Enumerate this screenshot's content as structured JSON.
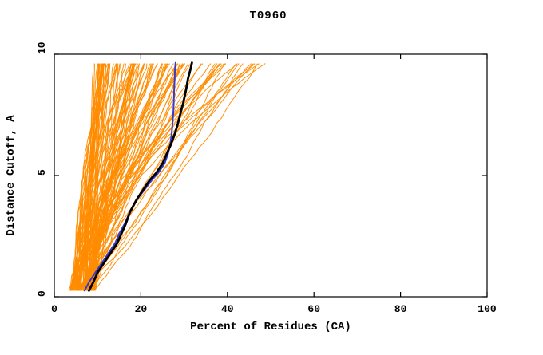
{
  "chart_data": {
    "type": "line",
    "title": "T0960",
    "xlabel": "Percent of Residues (CA)",
    "ylabel": "Distance Cutoff, A",
    "xlim": [
      0,
      100
    ],
    "ylim": [
      0,
      10
    ],
    "xticks": [
      0,
      20,
      40,
      60,
      80,
      100
    ],
    "yticks": [
      0,
      5,
      10
    ],
    "grid": false,
    "legend": "none",
    "colors": {
      "background": "#FFFFFF",
      "frame": "#000000",
      "models": "#FF8C00",
      "best_model": "#000000",
      "highlight_model": "#3A3AC8"
    },
    "series": [
      {
        "name": "highlight_model",
        "color": "#3A3AC8",
        "width": 2,
        "points": [
          [
            7,
            0.25
          ],
          [
            8,
            0.6
          ],
          [
            9.5,
            1.0
          ],
          [
            11,
            1.4
          ],
          [
            12.5,
            1.8
          ],
          [
            14,
            2.2
          ],
          [
            15,
            2.6
          ],
          [
            16.2,
            3.0
          ],
          [
            17.5,
            3.5
          ],
          [
            19,
            4.0
          ],
          [
            20.8,
            4.4
          ],
          [
            22.5,
            4.8
          ],
          [
            24,
            5.1
          ],
          [
            25.5,
            5.5
          ],
          [
            26.3,
            5.9
          ],
          [
            26.8,
            6.3
          ],
          [
            27.1,
            6.7
          ],
          [
            27.3,
            7.1
          ],
          [
            27.5,
            7.6
          ],
          [
            27.6,
            8.0
          ],
          [
            27.7,
            8.5
          ],
          [
            27.8,
            9.0
          ],
          [
            27.9,
            9.4
          ],
          [
            28,
            9.65
          ]
        ]
      },
      {
        "name": "best_model",
        "color": "#000000",
        "width": 2.8,
        "points": [
          [
            8,
            0.25
          ],
          [
            9,
            0.6
          ],
          [
            10,
            1.0
          ],
          [
            11.5,
            1.4
          ],
          [
            13,
            1.8
          ],
          [
            14.5,
            2.2
          ],
          [
            15.5,
            2.6
          ],
          [
            16.5,
            3.0
          ],
          [
            17.5,
            3.5
          ],
          [
            19,
            4.0
          ],
          [
            20.5,
            4.4
          ],
          [
            22,
            4.8
          ],
          [
            23.5,
            5.1
          ],
          [
            25,
            5.5
          ],
          [
            26,
            5.9
          ],
          [
            27,
            6.3
          ],
          [
            27.8,
            6.7
          ],
          [
            28.5,
            7.1
          ],
          [
            29.2,
            7.6
          ],
          [
            29.8,
            8.0
          ],
          [
            30.4,
            8.5
          ],
          [
            30.9,
            9.0
          ],
          [
            31.5,
            9.4
          ],
          [
            31.8,
            9.65
          ]
        ]
      }
    ],
    "orange_bundle": {
      "name": "model_curves",
      "count": 115,
      "seed": 1337,
      "segments": 46,
      "y_start": 0.25,
      "y_end": 9.62,
      "x_start_range": [
        3.5,
        9.5
      ],
      "x_end_min": 11,
      "x_end_max": 50,
      "x_end_bias": 1.8,
      "shape_exponent_range": [
        0.85,
        1.75
      ],
      "jitter": 0.55
    }
  }
}
